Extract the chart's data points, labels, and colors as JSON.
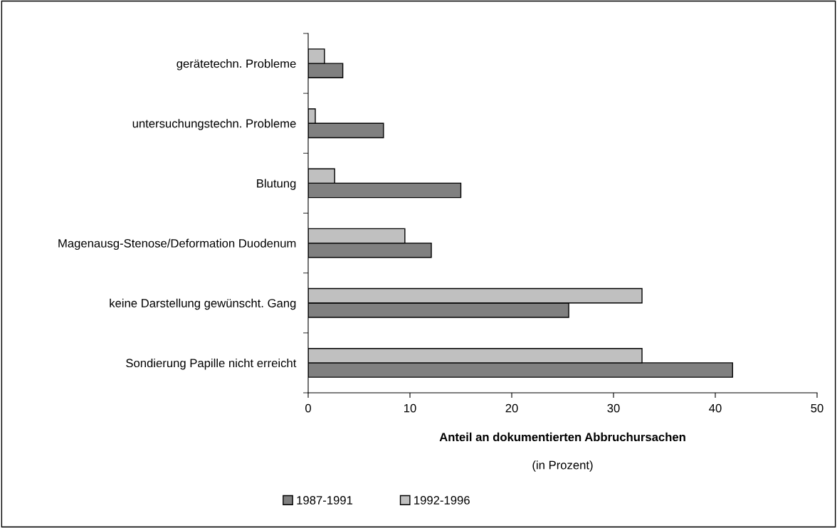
{
  "chart_data": {
    "type": "bar",
    "orientation": "horizontal",
    "categories": [
      "gerätetechn. Probleme",
      "untersuchungstechn. Probleme",
      "Blutung",
      "Magenausg-Stenose/Deformation Duodenum",
      "keine Darstellung gewünscht. Gang",
      "Sondierung Papille nicht erreicht"
    ],
    "series": [
      {
        "name": "1987-1991",
        "color": "#808080",
        "values": [
          3.4,
          7.4,
          15.0,
          12.1,
          25.6,
          41.7
        ]
      },
      {
        "name": "1992-1996",
        "color": "#c0c0c0",
        "values": [
          1.6,
          0.7,
          2.6,
          9.5,
          32.8,
          32.8
        ]
      }
    ],
    "xlabel": "Anteil an dokumentierten Abbruchursachen",
    "annotations": [
      "(in Prozent)"
    ],
    "xlim": [
      0,
      50
    ],
    "xticks": [
      0,
      10,
      20,
      30,
      40,
      50
    ],
    "grid": false,
    "legend": "bottom"
  }
}
